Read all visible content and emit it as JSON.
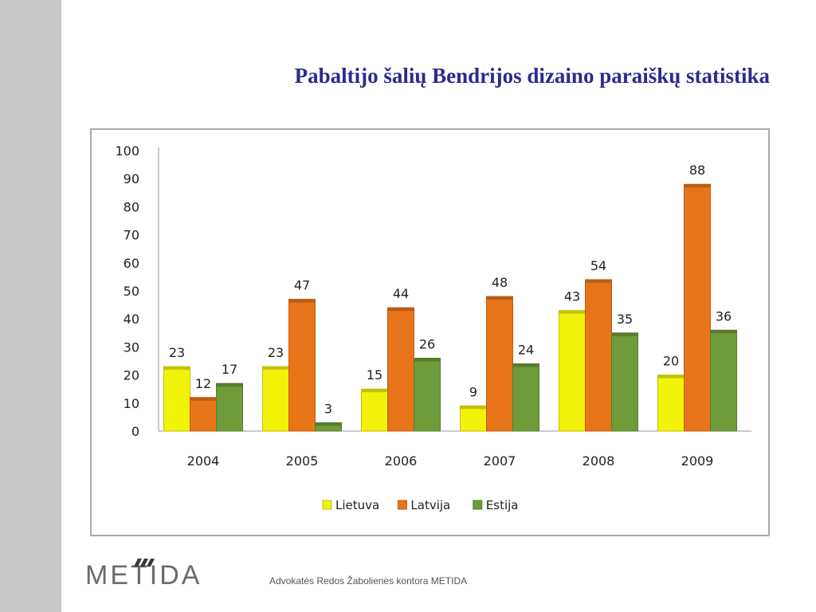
{
  "slide": {
    "title": "Pabaltijo šalių Bendrijos dizaino paraiškų statistika"
  },
  "footer": {
    "logo_text": "METIDA",
    "caption": "Advokatės Redos Žabolienės kontora METIDA"
  },
  "chart_data": {
    "type": "bar",
    "categories": [
      "2004",
      "2005",
      "2006",
      "2007",
      "2008",
      "2009"
    ],
    "series": [
      {
        "name": "Lietuva",
        "values": [
          23,
          23,
          15,
          9,
          43,
          20
        ],
        "color": "#f2f20a"
      },
      {
        "name": "Latvija",
        "values": [
          12,
          47,
          44,
          48,
          54,
          88
        ],
        "color": "#e8741a"
      },
      {
        "name": "Estija",
        "values": [
          17,
          3,
          26,
          24,
          35,
          36
        ],
        "color": "#6f9b3a"
      }
    ],
    "ylim": [
      0,
      100
    ],
    "yticks": [
      0,
      10,
      20,
      30,
      40,
      50,
      60,
      70,
      80,
      90,
      100
    ],
    "grid": false,
    "legend": "bottom",
    "data_labels": true
  }
}
